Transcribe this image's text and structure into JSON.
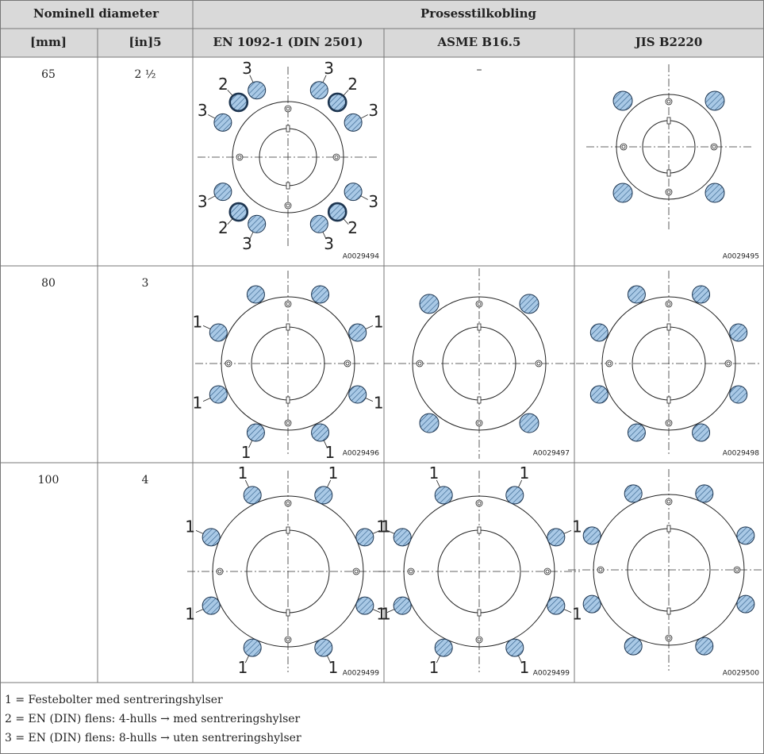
{
  "header": {
    "group1": "Nominell diameter",
    "group2": "Prosesstilkobling",
    "columns": [
      "[mm]",
      "[in]5",
      "EN 1092-1 (DIN 2501)",
      "ASME B16.5",
      "JIS B2220"
    ]
  },
  "rows": [
    {
      "mm": "65",
      "in": "2 ½",
      "cells": [
        {
          "callouts": [
            "3",
            "3",
            "3",
            "3",
            "3",
            "3",
            "3",
            "3",
            "2",
            "2",
            "2",
            "2"
          ],
          "code": "A0029494"
        },
        {
          "text": "–"
        },
        {
          "code": "A0029495"
        }
      ]
    },
    {
      "mm": "80",
      "in": "3",
      "cells": [
        {
          "callouts": [
            "1",
            "1",
            "1",
            "1",
            "1",
            "1"
          ],
          "code": "A0029496"
        },
        {
          "code": "A0029497"
        },
        {
          "code": "A0029498"
        }
      ]
    },
    {
      "mm": "100",
      "in": "4",
      "cells": [
        {
          "callouts": [
            "1",
            "1",
            "1",
            "1",
            "1",
            "1",
            "1",
            "1"
          ],
          "code": "A0029499"
        },
        {
          "callouts": [
            "1",
            "1",
            "1",
            "1",
            "1",
            "1",
            "1",
            "1"
          ],
          "code": "A0029499"
        },
        {
          "code": "A0029500"
        }
      ]
    }
  ],
  "notes": [
    "1 = Festebolter med sentreringshylser",
    "2 = EN (DIN) flens: 4-hulls → med sentreringshylser",
    "3 = EN (DIN) flens: 8-hulls → uten sentreringshylser"
  ]
}
